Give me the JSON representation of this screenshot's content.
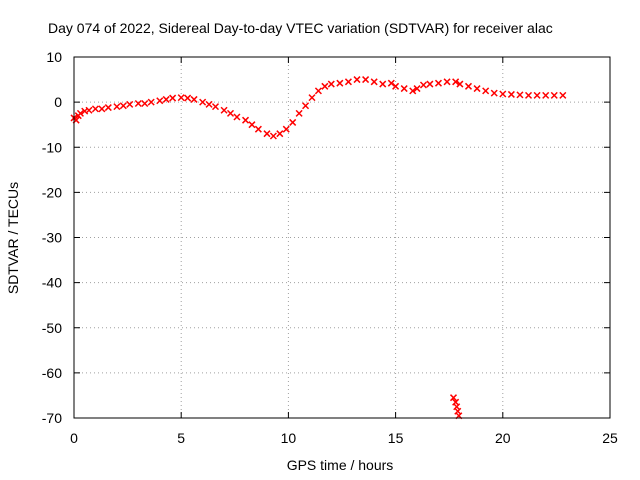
{
  "chart_data": {
    "type": "scatter",
    "title": "Day 074 of 2022, Sidereal Day-to-day VTEC variation (SDTVAR) for receiver alac",
    "xlabel": "GPS time / hours",
    "ylabel": "SDTVAR / TECUs",
    "xlim": [
      0,
      25
    ],
    "ylim": [
      -70,
      10
    ],
    "x_ticks": [
      0,
      5,
      10,
      15,
      20,
      25
    ],
    "y_ticks": [
      10,
      0,
      -10,
      -20,
      -30,
      -40,
      -50,
      -60,
      -70
    ],
    "grid": true,
    "marker": "cross",
    "series": [
      {
        "name": "SDTVAR",
        "color": "#ff0000",
        "points": [
          [
            0.0,
            -3.5
          ],
          [
            0.1,
            -4.0
          ],
          [
            0.2,
            -3.0
          ],
          [
            0.3,
            -2.5
          ],
          [
            0.5,
            -2.0
          ],
          [
            0.7,
            -1.8
          ],
          [
            1.0,
            -1.5
          ],
          [
            1.3,
            -1.5
          ],
          [
            1.6,
            -1.2
          ],
          [
            2.0,
            -1.0
          ],
          [
            2.3,
            -0.8
          ],
          [
            2.6,
            -0.5
          ],
          [
            3.0,
            -0.3
          ],
          [
            3.3,
            -0.3
          ],
          [
            3.6,
            0.0
          ],
          [
            4.0,
            0.3
          ],
          [
            4.3,
            0.6
          ],
          [
            4.6,
            0.9
          ],
          [
            5.0,
            1.0
          ],
          [
            5.3,
            0.9
          ],
          [
            5.6,
            0.6
          ],
          [
            6.0,
            0.0
          ],
          [
            6.3,
            -0.5
          ],
          [
            6.6,
            -1.0
          ],
          [
            7.0,
            -1.8
          ],
          [
            7.3,
            -2.5
          ],
          [
            7.6,
            -3.3
          ],
          [
            8.0,
            -4.0
          ],
          [
            8.3,
            -5.0
          ],
          [
            8.6,
            -6.0
          ],
          [
            9.0,
            -7.0
          ],
          [
            9.3,
            -7.5
          ],
          [
            9.6,
            -7.0
          ],
          [
            9.9,
            -6.0
          ],
          [
            10.2,
            -4.5
          ],
          [
            10.5,
            -2.5
          ],
          [
            10.8,
            -0.8
          ],
          [
            11.1,
            1.0
          ],
          [
            11.4,
            2.5
          ],
          [
            11.7,
            3.5
          ],
          [
            12.0,
            4.0
          ],
          [
            12.4,
            4.2
          ],
          [
            12.8,
            4.5
          ],
          [
            13.2,
            5.0
          ],
          [
            13.6,
            5.0
          ],
          [
            14.0,
            4.5
          ],
          [
            14.4,
            4.0
          ],
          [
            14.8,
            4.2
          ],
          [
            15.0,
            3.5
          ],
          [
            15.4,
            3.0
          ],
          [
            15.8,
            2.5
          ],
          [
            16.0,
            3.0
          ],
          [
            16.3,
            3.8
          ],
          [
            16.6,
            4.0
          ],
          [
            17.0,
            4.2
          ],
          [
            17.4,
            4.5
          ],
          [
            17.8,
            4.5
          ],
          [
            18.0,
            4.0
          ],
          [
            18.4,
            3.5
          ],
          [
            18.8,
            3.0
          ],
          [
            19.2,
            2.5
          ],
          [
            19.6,
            2.0
          ],
          [
            20.0,
            1.8
          ],
          [
            20.4,
            1.7
          ],
          [
            20.8,
            1.6
          ],
          [
            21.2,
            1.5
          ],
          [
            21.6,
            1.5
          ],
          [
            22.0,
            1.5
          ],
          [
            22.4,
            1.5
          ],
          [
            22.8,
            1.5
          ],
          [
            17.7,
            -65.5
          ],
          [
            17.8,
            -66.5
          ],
          [
            17.85,
            -67.5
          ],
          [
            17.9,
            -68.5
          ],
          [
            17.95,
            -69.5
          ]
        ]
      }
    ]
  }
}
